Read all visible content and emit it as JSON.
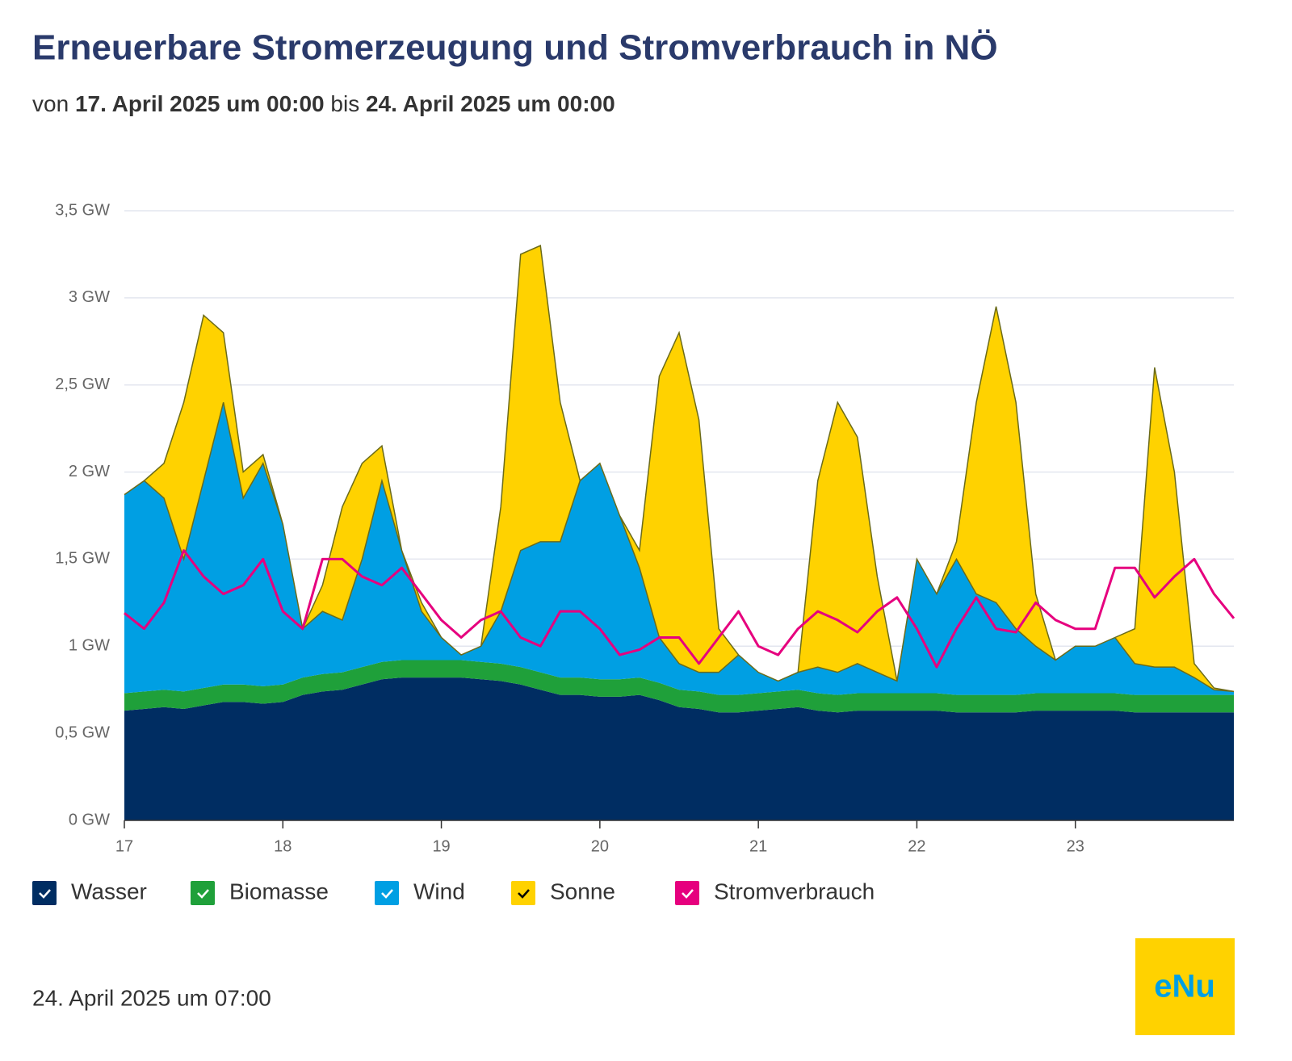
{
  "chart_data": {
    "type": "area",
    "title": "Erneuerbare Stromerzeugung und Stromverbrauch in NÖ",
    "subtitle": [
      "von",
      "17. April 2025 um 00:00",
      "bis",
      "24. April 2025 um 00:00"
    ],
    "footer": "24. April 2025 um 07:00",
    "logo": "eNu",
    "x": [
      17,
      17.125,
      17.25,
      17.375,
      17.5,
      17.625,
      17.75,
      17.875,
      18,
      18.125,
      18.25,
      18.375,
      18.5,
      18.625,
      18.75,
      18.875,
      19,
      19.125,
      19.25,
      19.375,
      19.5,
      19.625,
      19.75,
      19.875,
      20,
      20.125,
      20.25,
      20.375,
      20.5,
      20.625,
      20.75,
      20.875,
      21,
      21.125,
      21.25,
      21.375,
      21.5,
      21.625,
      21.75,
      21.875,
      22,
      22.125,
      22.25,
      22.375,
      22.5,
      22.625,
      22.75,
      22.875,
      23,
      23.125,
      23.25,
      23.375,
      23.5,
      23.625,
      23.75,
      23.875,
      24
    ],
    "xlim": [
      17,
      24
    ],
    "xticks": [
      17,
      18,
      19,
      20,
      21,
      22,
      23
    ],
    "ylim": [
      0,
      3.5
    ],
    "yticks": [
      {
        "value": 0,
        "label": "0 GW"
      },
      {
        "value": 0.5,
        "label": "0,5 GW"
      },
      {
        "value": 1,
        "label": "1 GW"
      },
      {
        "value": 1.5,
        "label": "1,5 GW"
      },
      {
        "value": 2,
        "label": "2 GW"
      },
      {
        "value": 2.5,
        "label": "2,5 GW"
      },
      {
        "value": 3,
        "label": "3 GW"
      },
      {
        "value": 3.5,
        "label": "3,5 GW"
      }
    ],
    "grid": true,
    "series": [
      {
        "name": "Wasser",
        "color": "#002d62",
        "type": "area",
        "values": [
          0.63,
          0.64,
          0.65,
          0.64,
          0.66,
          0.68,
          0.68,
          0.67,
          0.68,
          0.72,
          0.74,
          0.75,
          0.78,
          0.81,
          0.82,
          0.82,
          0.82,
          0.82,
          0.81,
          0.8,
          0.78,
          0.75,
          0.72,
          0.72,
          0.71,
          0.71,
          0.72,
          0.69,
          0.65,
          0.64,
          0.62,
          0.62,
          0.63,
          0.64,
          0.65,
          0.63,
          0.62,
          0.63,
          0.63,
          0.63,
          0.63,
          0.63,
          0.62,
          0.62,
          0.62,
          0.62,
          0.63,
          0.63,
          0.63,
          0.63,
          0.63,
          0.62,
          0.62,
          0.62,
          0.62,
          0.62,
          0.62
        ]
      },
      {
        "name": "Biomasse",
        "color": "#1fa03a",
        "type": "area",
        "values": [
          0.1,
          0.1,
          0.1,
          0.1,
          0.1,
          0.1,
          0.1,
          0.1,
          0.1,
          0.1,
          0.1,
          0.1,
          0.1,
          0.1,
          0.1,
          0.1,
          0.1,
          0.1,
          0.1,
          0.1,
          0.1,
          0.1,
          0.1,
          0.1,
          0.1,
          0.1,
          0.1,
          0.1,
          0.1,
          0.1,
          0.1,
          0.1,
          0.1,
          0.1,
          0.1,
          0.1,
          0.1,
          0.1,
          0.1,
          0.1,
          0.1,
          0.1,
          0.1,
          0.1,
          0.1,
          0.1,
          0.1,
          0.1,
          0.1,
          0.1,
          0.1,
          0.1,
          0.1,
          0.1,
          0.1,
          0.1,
          0.1
        ]
      },
      {
        "name": "Wind",
        "color": "#009fe3",
        "type": "area",
        "values": [
          1.14,
          1.21,
          1.1,
          0.76,
          1.19,
          1.62,
          1.07,
          1.28,
          0.92,
          0.28,
          0.36,
          0.3,
          0.62,
          1.04,
          0.63,
          0.28,
          0.13,
          0.03,
          0.09,
          0.3,
          0.67,
          0.75,
          0.78,
          1.13,
          1.24,
          0.94,
          0.63,
          0.26,
          0.15,
          0.11,
          0.13,
          0.23,
          0.12,
          0.06,
          0.1,
          0.15,
          0.13,
          0.17,
          0.12,
          0.07,
          0.77,
          0.57,
          0.78,
          0.58,
          0.53,
          0.38,
          0.27,
          0.19,
          0.27,
          0.27,
          0.32,
          0.18,
          0.16,
          0.16,
          0.1,
          0.03,
          0.02
        ]
      },
      {
        "name": "Sonne",
        "color": "#ffd200",
        "type": "area",
        "values": [
          0,
          0,
          0.2,
          0.9,
          0.95,
          0.4,
          0.15,
          0.05,
          0,
          0,
          0.15,
          0.65,
          0.55,
          0.2,
          0,
          0.05,
          0,
          0,
          0,
          0.6,
          1.7,
          1.7,
          0.8,
          0,
          0,
          0,
          0.1,
          1.5,
          1.9,
          1.45,
          0.25,
          0,
          0,
          0,
          0,
          1.07,
          1.55,
          1.3,
          0.55,
          0,
          0,
          0,
          0.1,
          1.1,
          1.7,
          1.3,
          0.3,
          0,
          0,
          0,
          0,
          0.2,
          1.72,
          1.12,
          0.08,
          0.01,
          0
        ]
      },
      {
        "name": "Stromverbrauch",
        "color": "#e6007e",
        "type": "line",
        "values": [
          1.19,
          1.1,
          1.25,
          1.55,
          1.4,
          1.3,
          1.35,
          1.5,
          1.2,
          1.1,
          1.5,
          1.5,
          1.4,
          1.35,
          1.45,
          1.3,
          1.15,
          1.05,
          1.15,
          1.2,
          1.05,
          1.0,
          1.2,
          1.2,
          1.1,
          0.95,
          0.98,
          1.05,
          1.05,
          0.9,
          1.05,
          1.2,
          1.0,
          0.95,
          1.1,
          1.2,
          1.15,
          1.08,
          1.2,
          1.28,
          1.1,
          0.88,
          1.1,
          1.28,
          1.1,
          1.08,
          1.25,
          1.15,
          1.1,
          1.1,
          1.45,
          1.45,
          1.28,
          1.4,
          1.5,
          1.3,
          1.16
        ]
      }
    ]
  }
}
